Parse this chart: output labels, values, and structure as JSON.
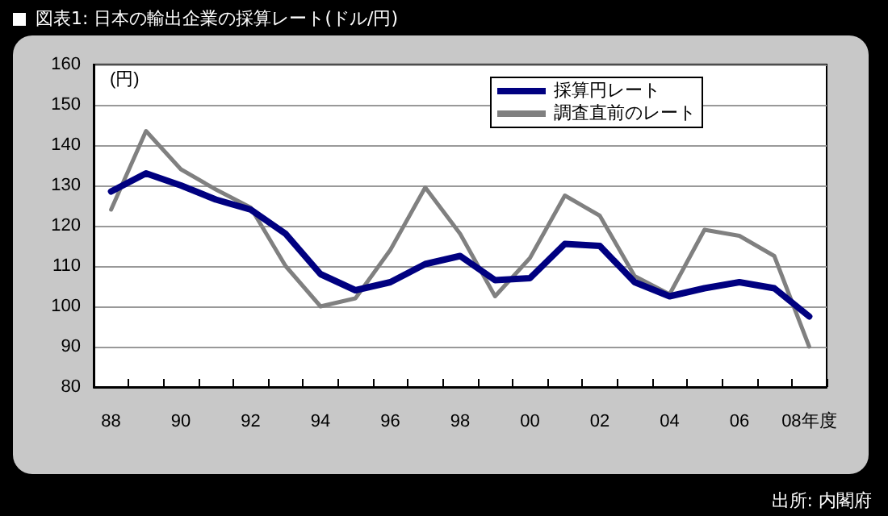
{
  "chart_data": {
    "type": "line",
    "title": "図表1: 日本の輸出企業の採算レート(ドル/円)",
    "ylabel": "(円)",
    "categories": [
      "88",
      null,
      "90",
      null,
      "92",
      null,
      "94",
      null,
      "96",
      null,
      "98",
      null,
      "00",
      null,
      "02",
      null,
      "04",
      null,
      "06",
      null,
      "08年度"
    ],
    "series": [
      {
        "name": "採算円レート",
        "color": "#000080",
        "values": [
          128.5,
          133,
          130,
          126.5,
          124,
          118,
          108,
          104,
          106,
          110.5,
          112.5,
          106.5,
          107,
          115.5,
          115,
          106,
          102.5,
          104.5,
          106,
          104.5,
          97.5
        ]
      },
      {
        "name": "調査直前のレート",
        "color": "#808080",
        "values": [
          124,
          143.5,
          134,
          129,
          124.5,
          110,
          100,
          102,
          114,
          129.5,
          118,
          102.5,
          112,
          127.5,
          122.5,
          107.5,
          103,
          119,
          117.5,
          112.5,
          90
        ]
      }
    ],
    "ylim": [
      80,
      160
    ],
    "yticks": [
      80,
      90,
      100,
      110,
      120,
      130,
      140,
      150,
      160
    ],
    "grid": "y",
    "legend": "top right",
    "marker": "none",
    "line_style": "solid",
    "annotations": [
      "出所: 内閣府"
    ]
  }
}
